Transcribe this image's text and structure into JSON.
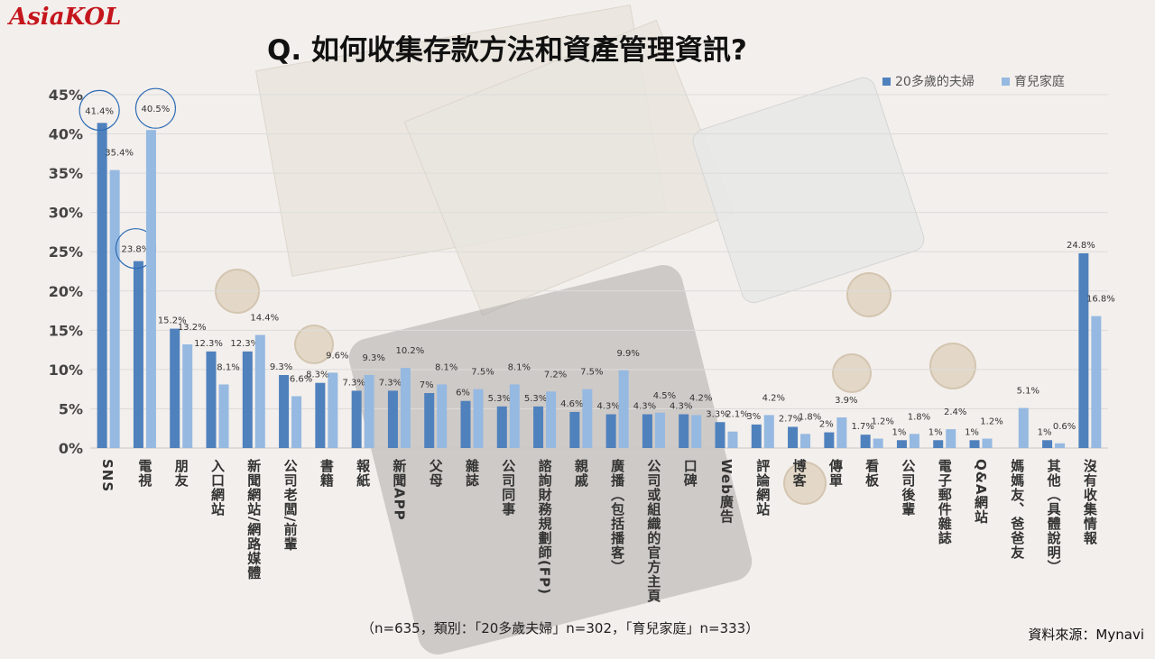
{
  "brand": "AsiaKOL",
  "title": "Q. 如何收集存款方法和資產管理資訊?",
  "footnote": "（n=635，類別：「20多歲夫婦」n=302，「育兒家庭」n=333）",
  "source": "資料來源：Mynavi",
  "colors": {
    "series1": "#4f81bd",
    "series2": "#95b9e1",
    "highlight": "#2f6db5"
  },
  "chart_data": {
    "type": "bar",
    "ylim": [
      0,
      45
    ],
    "yticks": [
      "0%",
      "5%",
      "10%",
      "15%",
      "20%",
      "25%",
      "30%",
      "35%",
      "40%",
      "45%"
    ],
    "grid": true,
    "legend_position": "top-right",
    "categories": [
      "SNS",
      "電視",
      "朋友",
      "入口網站",
      "新聞網站/網路媒體",
      "公司老闆/前輩",
      "書籍",
      "報紙",
      "新聞APP",
      "父母",
      "雜誌",
      "公司同事",
      "諮詢財務規劃師(FP)",
      "親戚",
      "廣播（包括播客）",
      "公司或組織的官方主頁",
      "口碑",
      "Web廣告",
      "評論網站",
      "博客",
      "傳單",
      "看板",
      "公司後輩",
      "電子郵件雜誌",
      "Q&A網站",
      "媽媽友、爸爸友",
      "其他（具體說明）",
      "沒有收集情報"
    ],
    "series": [
      {
        "name": "20多歲的夫婦",
        "values": [
          41.4,
          23.8,
          15.2,
          12.3,
          12.3,
          9.3,
          8.3,
          7.3,
          7.3,
          7,
          6,
          5.3,
          5.3,
          4.6,
          4.3,
          4.3,
          4.3,
          3.3,
          3,
          2.7,
          2,
          1.7,
          1,
          1,
          1,
          null,
          1,
          24.8
        ],
        "labels": [
          "41.4%",
          "23.8%",
          "15.2%",
          "12.3%",
          "12.3%",
          "9.3%",
          "8.3%",
          "7.3%",
          "7.3%",
          "7%",
          "6%",
          "5.3%",
          "5.3%",
          "4.6%",
          "4.3%",
          "4.3%",
          "4.3%",
          "3.3%",
          "3%",
          "2.7%",
          "2%",
          "1.7%",
          "1%",
          "1%",
          "1%",
          "",
          "1%",
          "24.8%"
        ]
      },
      {
        "name": "育兒家庭",
        "values": [
          35.4,
          40.5,
          13.2,
          8.1,
          14.4,
          6.6,
          9.6,
          9.3,
          10.2,
          8.1,
          7.5,
          8.1,
          7.2,
          7.5,
          9.9,
          4.5,
          4.2,
          2.1,
          4.2,
          1.8,
          3.9,
          1.2,
          1.8,
          2.4,
          1.2,
          5.1,
          0.6,
          16.8
        ],
        "labels": [
          "35.4%",
          "40.5%",
          "13.2%",
          "8.1%",
          "14.4%",
          "6.6%",
          "9.6%",
          "9.3%",
          "10.2%",
          "8.1%",
          "7.5%",
          "8.1%",
          "7.2%",
          "7.5%",
          "9.9%",
          "4.5%",
          "4.2%",
          "2.1%",
          "4.2%",
          "1.8%",
          "3.9%",
          "1.2%",
          "1.8%",
          "2.4%",
          "1.2%",
          "5.1%",
          "0.6%",
          "16.8%"
        ]
      }
    ],
    "highlighted": [
      [
        0,
        0
      ],
      [
        0,
        1
      ],
      [
        1,
        1
      ]
    ]
  }
}
